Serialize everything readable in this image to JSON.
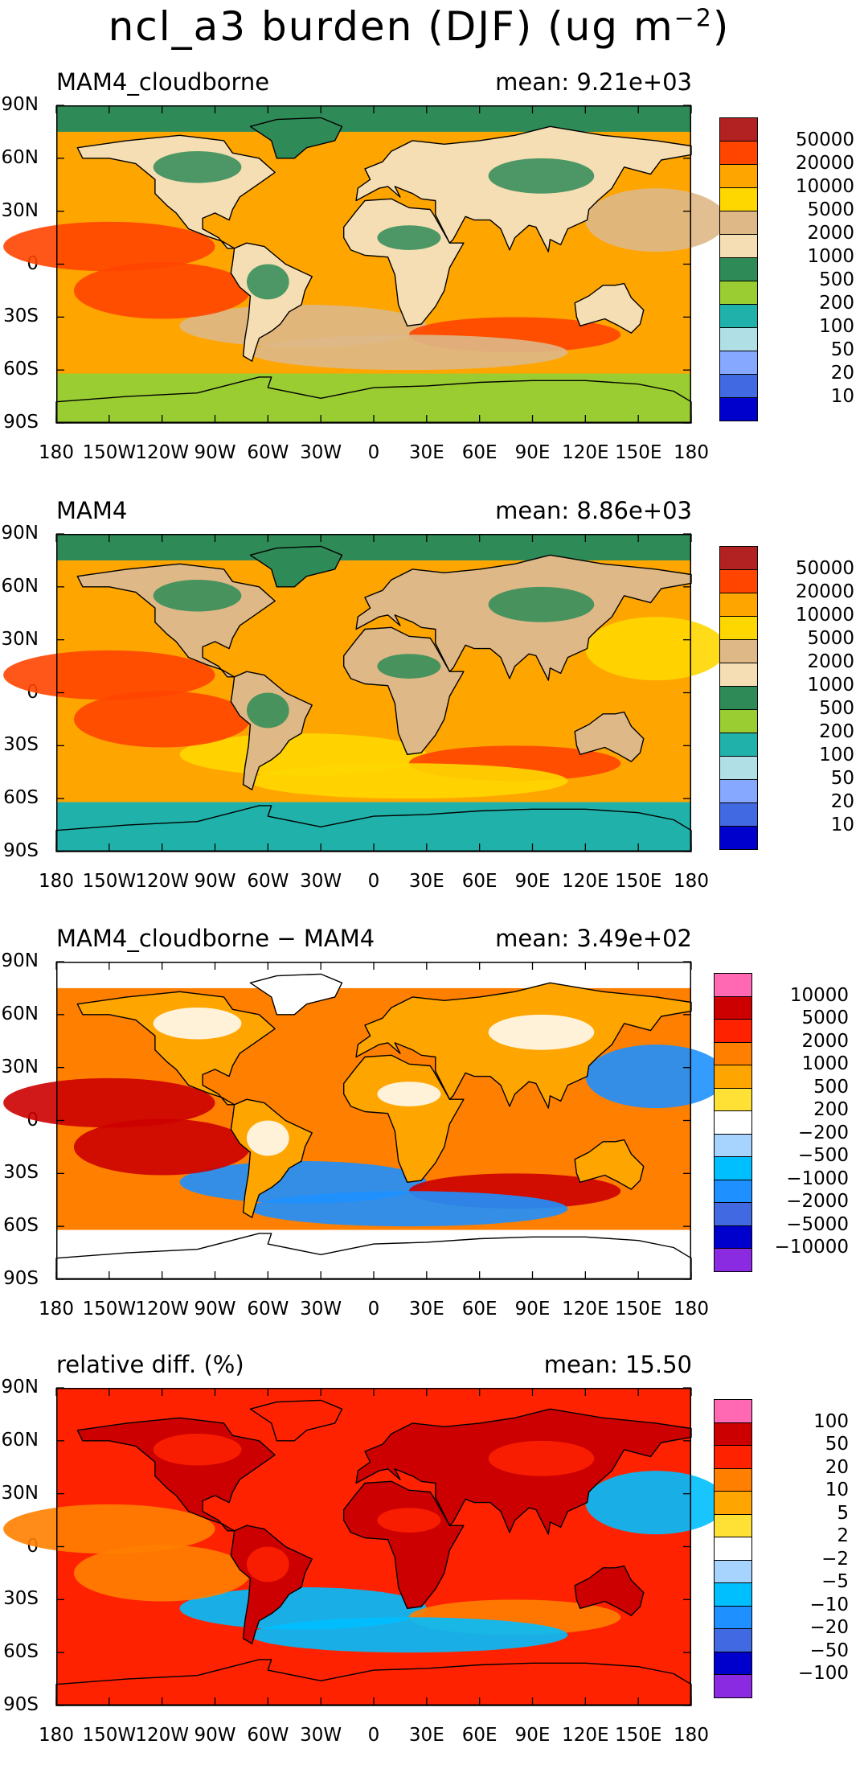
{
  "title": {
    "main": "ncl_a3 burden (DJF) (ug m",
    "sup": "−2",
    "close": ")"
  },
  "lat_ticks": [
    "90N",
    "60N",
    "30N",
    "0",
    "30S",
    "60S",
    "90S"
  ],
  "lon_ticks": [
    "180",
    "150W",
    "120W",
    "90W",
    "60W",
    "30W",
    "0",
    "30E",
    "60E",
    "90E",
    "120E",
    "150E",
    "180"
  ],
  "panels": [
    {
      "title": "MAM4_cloudborne",
      "mean": "mean: 9.21e+03",
      "legend": {
        "labels": [
          "50000",
          "20000",
          "10000",
          "5000",
          "2000",
          "1000",
          "500",
          "200",
          "100",
          "50",
          "20",
          "10"
        ],
        "colors": [
          "#b22222",
          "#ff4500",
          "#ffa500",
          "#ffd700",
          "#deb887",
          "#f5deb3",
          "#2e8b57",
          "#9acd32",
          "#20b2aa",
          "#b0e0e6",
          "#87a8ff",
          "#4169e1",
          "#0000cd"
        ]
      },
      "map": {
        "ocean": "#ffa500",
        "land": "#f5deb3",
        "north": "#2e8b57",
        "south": "#9acd32",
        "blob1": "#deb887",
        "blob2": "#ff4500"
      }
    },
    {
      "title": "MAM4",
      "mean": "mean: 8.86e+03",
      "legend": {
        "labels": [
          "50000",
          "20000",
          "10000",
          "5000",
          "2000",
          "1000",
          "500",
          "200",
          "100",
          "50",
          "20",
          "10"
        ],
        "colors": [
          "#b22222",
          "#ff4500",
          "#ffa500",
          "#ffd700",
          "#deb887",
          "#f5deb3",
          "#2e8b57",
          "#9acd32",
          "#20b2aa",
          "#b0e0e6",
          "#87a8ff",
          "#4169e1",
          "#0000cd"
        ]
      },
      "map": {
        "ocean": "#ffa500",
        "land": "#deb887",
        "north": "#2e8b57",
        "south": "#20b2aa",
        "blob1": "#ffd700",
        "blob2": "#ff4500"
      }
    },
    {
      "title": "MAM4_cloudborne − MAM4",
      "mean": "mean: 3.49e+02",
      "legend": {
        "labels": [
          "10000",
          "5000",
          "2000",
          "1000",
          "500",
          "200",
          "−200",
          "−500",
          "−1000",
          "−2000",
          "−5000",
          "−10000"
        ],
        "colors": [
          "#ff69b4",
          "#cc0000",
          "#ff2200",
          "#ff7f00",
          "#ffa500",
          "#ffe135",
          "#ffffff",
          "#a7d3ff",
          "#00bfff",
          "#1e90ff",
          "#4169e1",
          "#0000cd",
          "#8a2be2"
        ]
      },
      "map": {
        "ocean": "#ff7f00",
        "land": "#ffa500",
        "north": "#ffffff",
        "south": "#ffffff",
        "blob1": "#1e90ff",
        "blob2": "#cc0000"
      }
    },
    {
      "title": "relative diff. (%)",
      "mean": "mean: 15.50",
      "legend": {
        "labels": [
          "100",
          "50",
          "20",
          "10",
          "5",
          "2",
          "−2",
          "−5",
          "−10",
          "−20",
          "−50",
          "−100"
        ],
        "colors": [
          "#ff69b4",
          "#cc0000",
          "#ff2200",
          "#ff7f00",
          "#ffa500",
          "#ffe135",
          "#ffffff",
          "#a7d3ff",
          "#00bfff",
          "#1e90ff",
          "#4169e1",
          "#0000cd",
          "#8a2be2"
        ]
      },
      "map": {
        "ocean": "#ff2200",
        "land": "#cc0000",
        "north": "#ff2200",
        "south": "#ff2200",
        "blob1": "#00bfff",
        "blob2": "#ff7f00"
      }
    }
  ]
}
